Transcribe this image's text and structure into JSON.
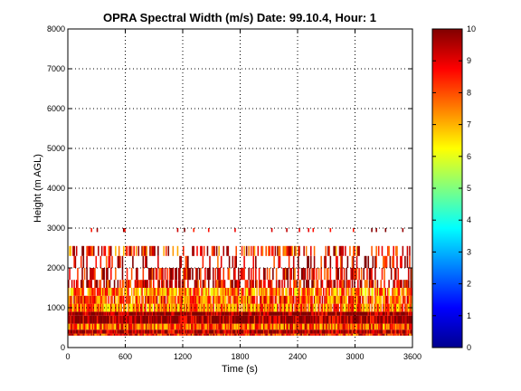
{
  "chart_data": {
    "type": "heatmap",
    "title": "OPRA Spectral Width (m/s)  Date: 99.10.4, Hour: 1",
    "xlabel": "Time (s)",
    "ylabel": "Height (m AGL)",
    "xlim": [
      0,
      3600
    ],
    "ylim": [
      0,
      8000
    ],
    "x_ticks": [
      "0",
      "600",
      "1200",
      "1800",
      "2400",
      "3000",
      "3600"
    ],
    "x_tick_values": [
      0,
      600,
      1200,
      1800,
      2400,
      3000,
      3600
    ],
    "y_ticks": [
      "0",
      "1000",
      "2000",
      "3000",
      "4000",
      "5000",
      "6000",
      "7000",
      "8000"
    ],
    "y_tick_values": [
      0,
      1000,
      2000,
      3000,
      4000,
      5000,
      6000,
      7000,
      8000
    ],
    "grid": true,
    "grid_style": "dotted",
    "colorbar": {
      "colormap": "jet",
      "range": [
        0,
        10
      ],
      "ticks": [
        "0",
        "1",
        "2",
        "3",
        "4",
        "5",
        "6",
        "7",
        "8",
        "9",
        "10"
      ],
      "tick_values": [
        0,
        1,
        2,
        3,
        4,
        5,
        6,
        7,
        8,
        9,
        10
      ]
    },
    "height_bands_m": [
      {
        "from": 300,
        "to": 350,
        "typical_value": 8.5,
        "coverage": 1.0
      },
      {
        "from": 350,
        "to": 450,
        "typical_value": 9.6,
        "coverage": 1.0
      },
      {
        "from": 450,
        "to": 600,
        "typical_value": 8.0,
        "coverage": 1.0
      },
      {
        "from": 600,
        "to": 800,
        "typical_value": 9.7,
        "coverage": 1.0
      },
      {
        "from": 800,
        "to": 900,
        "typical_value": 9.9,
        "coverage": 1.0
      },
      {
        "from": 900,
        "to": 1100,
        "typical_value": 7.5,
        "coverage": 0.95
      },
      {
        "from": 1100,
        "to": 1300,
        "typical_value": 8.0,
        "coverage": 0.9
      },
      {
        "from": 1300,
        "to": 1500,
        "typical_value": 7.5,
        "coverage": 0.85
      },
      {
        "from": 1500,
        "to": 1700,
        "typical_value": 9.0,
        "coverage": 0.6
      },
      {
        "from": 1700,
        "to": 2000,
        "typical_value": 9.0,
        "coverage": 0.45
      },
      {
        "from": 2000,
        "to": 2300,
        "typical_value": 9.2,
        "coverage": 0.25
      },
      {
        "from": 2300,
        "to": 2550,
        "typical_value": 8.5,
        "coverage": 0.4
      },
      {
        "from": 2900,
        "to": 3000,
        "typical_value": 9.8,
        "coverage": 0.05
      }
    ],
    "colors": {
      "frame": "#000000",
      "grid": "#000000",
      "background": "#ffffff"
    }
  }
}
